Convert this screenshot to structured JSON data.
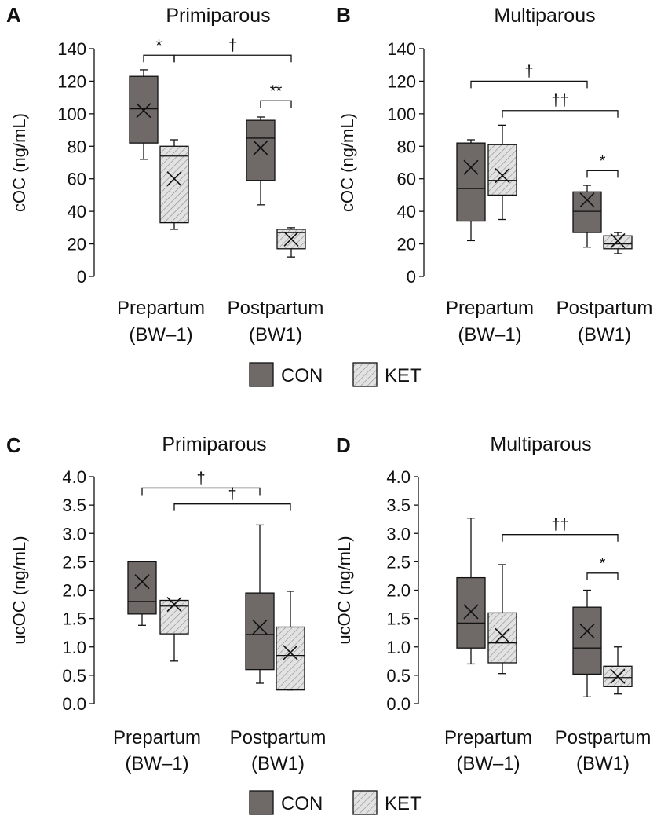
{
  "colors": {
    "con": "#6f6a68",
    "ket": "#e2e2e2",
    "hatch": "#8a8a8a",
    "line": "#111111"
  },
  "legend": {
    "con_label": "CON",
    "ket_label": "KET"
  },
  "chart_data": [
    {
      "type": "box",
      "panel": "A",
      "title": "Primiparous",
      "ylabel": "cOC (ng/mL)",
      "ylim": [
        0,
        140
      ],
      "yticks": [
        0,
        20,
        40,
        60,
        80,
        100,
        120,
        140
      ],
      "ytick_labels": [
        "0",
        "20",
        "40",
        "60",
        "80",
        "100",
        "120",
        "140"
      ],
      "categories": [
        {
          "line1": "Prepartum",
          "line2": "(BW–1)"
        },
        {
          "line1": "Postpartum",
          "line2": "(BW1)"
        }
      ],
      "series": [
        {
          "name": "CON",
          "boxes": [
            {
              "min": 72,
              "q1": 82,
              "median": 103,
              "q3": 123,
              "max": 127,
              "mean": 102
            },
            {
              "min": 44,
              "q1": 59,
              "median": 85,
              "q3": 96,
              "max": 98,
              "mean": 79
            }
          ]
        },
        {
          "name": "KET",
          "boxes": [
            {
              "min": 29,
              "q1": 33,
              "median": 74,
              "q3": 80,
              "max": 84,
              "mean": 60
            },
            {
              "min": 12,
              "q1": 17,
              "median": 27,
              "q3": 29,
              "max": 30,
              "mean": 23
            }
          ]
        }
      ],
      "annotations": [
        {
          "label": "*",
          "from": [
            0,
            "CON"
          ],
          "to": [
            0,
            "KET"
          ],
          "y": 136
        },
        {
          "label": "†",
          "from": [
            0,
            "KET"
          ],
          "to": [
            1,
            "KET"
          ],
          "y": 136
        },
        {
          "label": "**",
          "from": [
            1,
            "CON"
          ],
          "to": [
            1,
            "KET"
          ],
          "y": 108
        }
      ]
    },
    {
      "type": "box",
      "panel": "B",
      "title": "Multiparous",
      "ylabel": "cOC (ng/mL)",
      "ylim": [
        0,
        140
      ],
      "yticks": [
        0,
        20,
        40,
        60,
        80,
        100,
        120,
        140
      ],
      "ytick_labels": [
        "0",
        "20",
        "40",
        "60",
        "80",
        "100",
        "120",
        "140"
      ],
      "categories": [
        {
          "line1": "Prepartum",
          "line2": "(BW–1)"
        },
        {
          "line1": "Postpartum",
          "line2": "(BW1)"
        }
      ],
      "series": [
        {
          "name": "CON",
          "boxes": [
            {
              "min": 22,
              "q1": 34,
              "median": 54,
              "q3": 82,
              "max": 84,
              "mean": 67
            },
            {
              "min": 18,
              "q1": 27,
              "median": 40,
              "q3": 52,
              "max": 56,
              "mean": 47
            }
          ]
        },
        {
          "name": "KET",
          "boxes": [
            {
              "min": 35,
              "q1": 50,
              "median": 59,
              "q3": 81,
              "max": 93,
              "mean": 62
            },
            {
              "min": 14,
              "q1": 17,
              "median": 20,
              "q3": 25,
              "max": 27,
              "mean": 22
            }
          ]
        }
      ],
      "annotations": [
        {
          "label": "†",
          "from": [
            0,
            "CON"
          ],
          "to": [
            1,
            "CON"
          ],
          "y": 120
        },
        {
          "label": "††",
          "from": [
            0,
            "KET"
          ],
          "to": [
            1,
            "KET"
          ],
          "y": 102
        },
        {
          "label": "*",
          "from": [
            1,
            "CON"
          ],
          "to": [
            1,
            "KET"
          ],
          "y": 65
        }
      ]
    },
    {
      "type": "box",
      "panel": "C",
      "title": "Primiparous",
      "ylabel": "ucOC (ng/mL)",
      "ylim": [
        0,
        4
      ],
      "yticks": [
        0,
        0.5,
        1,
        1.5,
        2,
        2.5,
        3,
        3.5,
        4
      ],
      "ytick_labels": [
        "0.0",
        "0.5",
        "1.0",
        "1.5",
        "2.0",
        "2.5",
        "3.0",
        "3.5",
        "4.0"
      ],
      "categories": [
        {
          "line1": "Prepartum",
          "line2": "(BW–1)"
        },
        {
          "line1": "Postpartum",
          "line2": "(BW1)"
        }
      ],
      "series": [
        {
          "name": "CON",
          "boxes": [
            {
              "min": 1.38,
              "q1": 1.58,
              "median": 1.8,
              "q3": 2.5,
              "max": 2.5,
              "mean": 2.15
            },
            {
              "min": 0.36,
              "q1": 0.6,
              "median": 1.22,
              "q3": 1.95,
              "max": 3.15,
              "mean": 1.35
            }
          ]
        },
        {
          "name": "KET",
          "boxes": [
            {
              "min": 0.75,
              "q1": 1.23,
              "median": 1.72,
              "q3": 1.82,
              "max": 1.82,
              "mean": 1.75
            },
            {
              "min": 0.24,
              "q1": 0.24,
              "median": 0.85,
              "q3": 1.35,
              "max": 1.98,
              "mean": 0.9
            }
          ]
        }
      ],
      "annotations": [
        {
          "label": "†",
          "from": [
            0,
            "CON"
          ],
          "to": [
            1,
            "CON"
          ],
          "y": 3.8
        },
        {
          "label": "†",
          "from": [
            0,
            "KET"
          ],
          "to": [
            1,
            "KET"
          ],
          "y": 3.52
        }
      ]
    },
    {
      "type": "box",
      "panel": "D",
      "title": "Multiparous",
      "ylabel": "ucOC (ng/mL)",
      "ylim": [
        0,
        4
      ],
      "yticks": [
        0,
        0.5,
        1,
        1.5,
        2,
        2.5,
        3,
        3.5,
        4
      ],
      "ytick_labels": [
        "0.0",
        "0.5",
        "1.0",
        "1.5",
        "2.0",
        "2.5",
        "3.0",
        "3.5",
        "4.0"
      ],
      "categories": [
        {
          "line1": "Prepartum",
          "line2": "(BW–1)"
        },
        {
          "line1": "Postpartum",
          "line2": "(BW1)"
        }
      ],
      "series": [
        {
          "name": "CON",
          "boxes": [
            {
              "min": 0.7,
              "q1": 0.98,
              "median": 1.42,
              "q3": 2.22,
              "max": 3.27,
              "mean": 1.62
            },
            {
              "min": 0.12,
              "q1": 0.52,
              "median": 0.98,
              "q3": 1.7,
              "max": 2.0,
              "mean": 1.28
            }
          ]
        },
        {
          "name": "KET",
          "boxes": [
            {
              "min": 0.53,
              "q1": 0.72,
              "median": 1.07,
              "q3": 1.6,
              "max": 2.45,
              "mean": 1.2
            },
            {
              "min": 0.17,
              "q1": 0.3,
              "median": 0.46,
              "q3": 0.66,
              "max": 1.0,
              "mean": 0.48
            }
          ]
        }
      ],
      "annotations": [
        {
          "label": "††",
          "from": [
            0,
            "KET"
          ],
          "to": [
            1,
            "KET"
          ],
          "y": 2.98
        },
        {
          "label": "*",
          "from": [
            1,
            "CON"
          ],
          "to": [
            1,
            "KET"
          ],
          "y": 2.3
        }
      ]
    }
  ]
}
